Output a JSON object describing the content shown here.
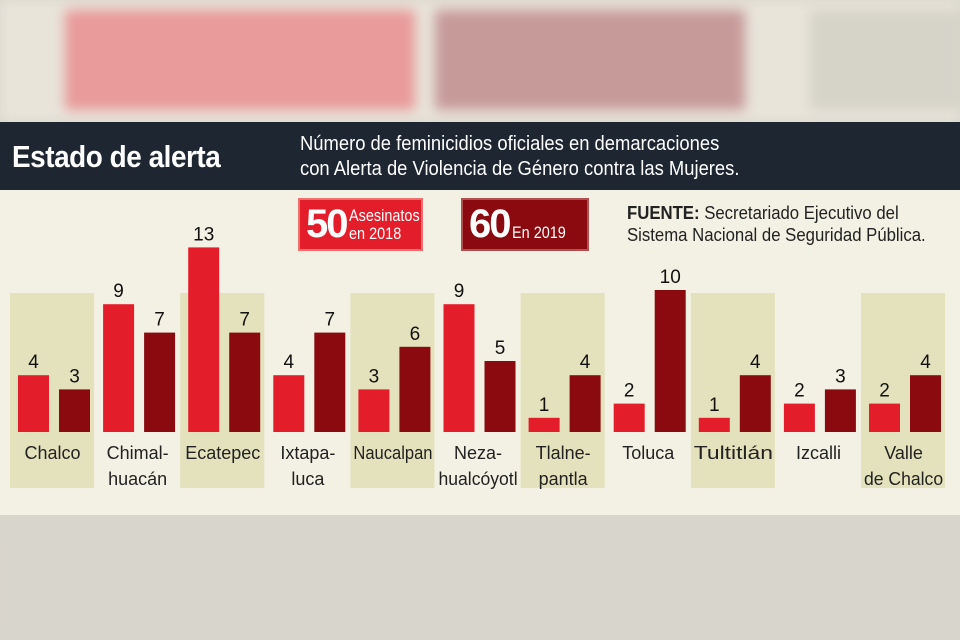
{
  "header": {
    "title": "Estado de alerta",
    "subtitle_line1": "Número de feminicidios oficiales en demarcaciones",
    "subtitle_line2": "con Alerta de Violencia de Género contra las Mujeres."
  },
  "legend": [
    {
      "total": "50",
      "label_line1": "Asesinatos",
      "label_line2": "en 2018",
      "color": "#e41d2b"
    },
    {
      "total": "60",
      "label_line1": "",
      "label_line2": "En 2019",
      "color": "#8a0a10"
    }
  ],
  "source": {
    "label": "FUENTE:",
    "text_line1": "Secretariado Ejecutivo del",
    "text_line2": "Sistema Nacional de Seguridad Pública."
  },
  "chart_data": {
    "type": "bar",
    "categories": [
      "Chalco",
      "Chimal-huacán",
      "Ecatepec",
      "Ixtapa-luca",
      "Naucalpan",
      "Neza-hualcóyotl",
      "Tlalne-pantla",
      "Toluca",
      "Tultitlán",
      "Izcalli",
      "Valle de Chalco"
    ],
    "category_lines": [
      [
        "Chalco"
      ],
      [
        "Chimal-",
        "huacán"
      ],
      [
        "Ecatepec"
      ],
      [
        "Ixtapa-",
        "luca"
      ],
      [
        "Naucalpan"
      ],
      [
        "Neza-",
        "hualcóyotl"
      ],
      [
        "Tlalne-",
        "pantla"
      ],
      [
        "Toluca"
      ],
      [
        "Tultitlán"
      ],
      [
        "Izcalli"
      ],
      [
        "Valle",
        "de Chalco"
      ]
    ],
    "series": [
      {
        "name": "en 2018",
        "values": [
          4,
          9,
          13,
          4,
          3,
          9,
          1,
          2,
          1,
          2,
          2
        ],
        "color": "#e41d2b"
      },
      {
        "name": "En 2019",
        "values": [
          3,
          7,
          7,
          7,
          6,
          5,
          4,
          10,
          4,
          3,
          4
        ],
        "color": "#8a0a10"
      }
    ],
    "ylim": [
      0,
      13
    ],
    "grid": false
  }
}
